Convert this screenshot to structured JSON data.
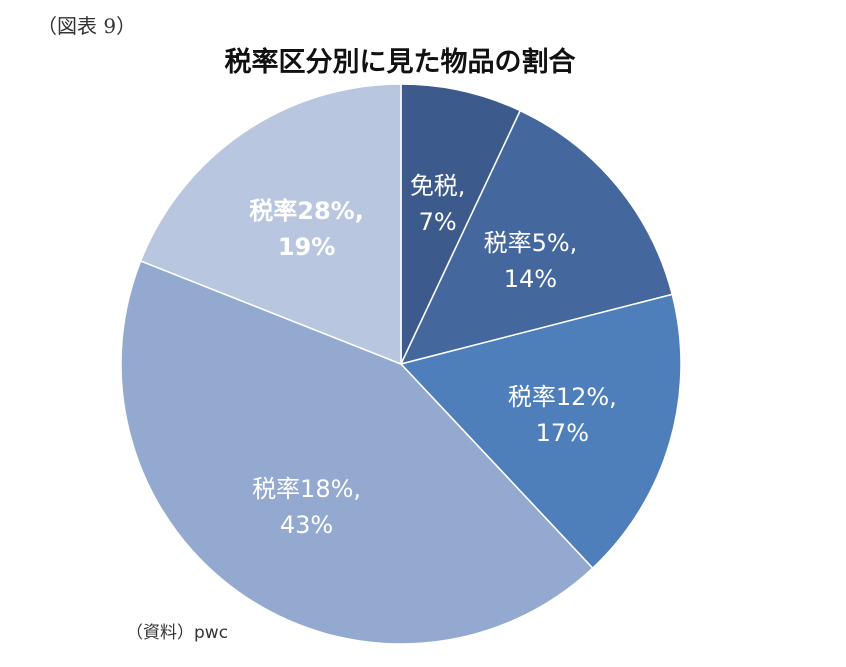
{
  "figure_label": "（図表 9）",
  "source_note": "（資料）pwc",
  "chart_data": {
    "type": "pie",
    "title": "税率区分別に見た物品の割合",
    "unit": "%",
    "slices": [
      {
        "category": "免税",
        "value": 7,
        "line1": "免税,",
        "line2": "7%",
        "color": "#3c5a8c",
        "bold": false
      },
      {
        "category": "税率5%",
        "value": 14,
        "line1": "税率5%,",
        "line2": "14%",
        "color": "#44679e",
        "bold": false
      },
      {
        "category": "税率12%",
        "value": 17,
        "line1": "税率12%,",
        "line2": "17%",
        "color": "#4e7fbb",
        "bold": false
      },
      {
        "category": "税率18%",
        "value": 43,
        "line1": "税率18%,",
        "line2": "43%",
        "color": "#93a9d0",
        "bold": false
      },
      {
        "category": "税率28%",
        "value": 19,
        "line1": "税率28%,",
        "line2": "19%",
        "color": "#b9c6df",
        "bold": true
      }
    ]
  }
}
